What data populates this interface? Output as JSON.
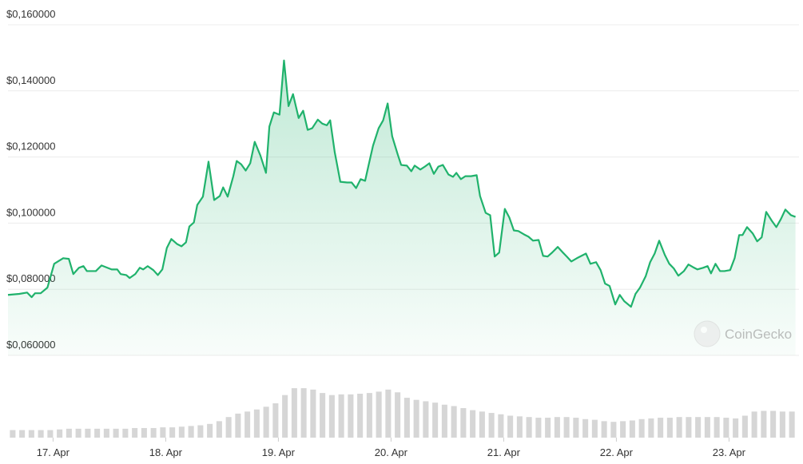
{
  "chart_data": {
    "type": "line",
    "color": "#20b26c",
    "grid": true,
    "watermark": "CoinGecko",
    "xlim": [
      -0.4,
      6.6
    ],
    "ylim": [
      0.06,
      0.16
    ],
    "yticks": [
      {
        "value": 0.06,
        "label": "$0,060000"
      },
      {
        "value": 0.08,
        "label": "$0,080000"
      },
      {
        "value": 0.1,
        "label": "$0,100000"
      },
      {
        "value": 0.12,
        "label": "$0,120000"
      },
      {
        "value": 0.14,
        "label": "$0,140000"
      },
      {
        "value": 0.16,
        "label": "$0,160000"
      }
    ],
    "xticks": [
      {
        "value": 0,
        "label": "17. Apr"
      },
      {
        "value": 1,
        "label": "18. Apr"
      },
      {
        "value": 2,
        "label": "19. Apr"
      },
      {
        "value": 3,
        "label": "20. Apr"
      },
      {
        "value": 4,
        "label": "21. Apr"
      },
      {
        "value": 5,
        "label": "22. Apr"
      },
      {
        "value": 6,
        "label": "23. Apr"
      }
    ],
    "x": [
      -0.4,
      -0.3,
      -0.23,
      -0.19,
      -0.16,
      -0.11,
      -0.05,
      0.01,
      0.09,
      0.14,
      0.18,
      0.23,
      0.27,
      0.3,
      0.38,
      0.43,
      0.52,
      0.57,
      0.6,
      0.65,
      0.68,
      0.73,
      0.77,
      0.8,
      0.84,
      0.89,
      0.93,
      0.97,
      1.01,
      1.05,
      1.1,
      1.14,
      1.18,
      1.21,
      1.25,
      1.28,
      1.33,
      1.38,
      1.43,
      1.48,
      1.51,
      1.55,
      1.6,
      1.63,
      1.67,
      1.71,
      1.75,
      1.79,
      1.84,
      1.89,
      1.92,
      1.96,
      2.01,
      2.05,
      2.09,
      2.13,
      2.18,
      2.22,
      2.26,
      2.3,
      2.35,
      2.39,
      2.43,
      2.46,
      2.5,
      2.55,
      2.61,
      2.65,
      2.69,
      2.73,
      2.77,
      2.8,
      2.84,
      2.89,
      2.93,
      2.97,
      3.01,
      3.06,
      3.09,
      3.14,
      3.18,
      3.21,
      3.26,
      3.3,
      3.34,
      3.38,
      3.42,
      3.46,
      3.51,
      3.55,
      3.58,
      3.62,
      3.66,
      3.71,
      3.76,
      3.79,
      3.84,
      3.88,
      3.92,
      3.96,
      4.01,
      4.05,
      4.09,
      4.13,
      4.18,
      4.22,
      4.26,
      4.31,
      4.35,
      4.39,
      4.43,
      4.48,
      4.52,
      4.56,
      4.6,
      4.65,
      4.69,
      4.73,
      4.77,
      4.82,
      4.86,
      4.9,
      4.94,
      4.99,
      5.03,
      5.07,
      5.13,
      5.17,
      5.21,
      5.26,
      5.3,
      5.34,
      5.38,
      5.43,
      5.47,
      5.51,
      5.55,
      5.6,
      5.64,
      5.68,
      5.72,
      5.77,
      5.81,
      5.84,
      5.88,
      5.92,
      5.96,
      6.01,
      6.05,
      6.09,
      6.12,
      6.16,
      6.21,
      6.25,
      6.29,
      6.33,
      6.38,
      6.42,
      6.46,
      6.5,
      6.55,
      6.59
    ],
    "values": [
      0.0783,
      0.0786,
      0.079,
      0.0776,
      0.0788,
      0.0788,
      0.0805,
      0.0877,
      0.0894,
      0.0892,
      0.0846,
      0.0865,
      0.087,
      0.0855,
      0.0855,
      0.0872,
      0.086,
      0.086,
      0.0846,
      0.0843,
      0.0834,
      0.0846,
      0.0865,
      0.086,
      0.087,
      0.0858,
      0.0843,
      0.086,
      0.0925,
      0.0952,
      0.0937,
      0.093,
      0.0942,
      0.099,
      0.1002,
      0.1055,
      0.108,
      0.1186,
      0.107,
      0.1082,
      0.1108,
      0.108,
      0.1142,
      0.1188,
      0.1178,
      0.1159,
      0.1181,
      0.1246,
      0.1205,
      0.1152,
      0.1292,
      0.1335,
      0.1328,
      0.1492,
      0.1354,
      0.139,
      0.1318,
      0.134,
      0.1282,
      0.1287,
      0.1313,
      0.1301,
      0.1296,
      0.1311,
      0.1215,
      0.1125,
      0.1123,
      0.1123,
      0.1106,
      0.1133,
      0.1128,
      0.1174,
      0.1234,
      0.1287,
      0.1311,
      0.1362,
      0.1263,
      0.1207,
      0.1176,
      0.1174,
      0.1157,
      0.1174,
      0.1162,
      0.1171,
      0.1181,
      0.1149,
      0.1171,
      0.1176,
      0.1147,
      0.114,
      0.1152,
      0.1133,
      0.1142,
      0.1142,
      0.1145,
      0.1082,
      0.1031,
      0.1024,
      0.0899,
      0.0911,
      0.1043,
      0.1017,
      0.0978,
      0.0976,
      0.0966,
      0.0959,
      0.0947,
      0.0949,
      0.0901,
      0.0899,
      0.0911,
      0.0928,
      0.0913,
      0.0899,
      0.0884,
      0.0894,
      0.0901,
      0.0908,
      0.0877,
      0.0882,
      0.0858,
      0.0817,
      0.081,
      0.0754,
      0.0783,
      0.0764,
      0.0747,
      0.0786,
      0.0805,
      0.0839,
      0.0882,
      0.0908,
      0.0947,
      0.0904,
      0.0877,
      0.0863,
      0.0841,
      0.0855,
      0.0875,
      0.0867,
      0.086,
      0.0865,
      0.087,
      0.0848,
      0.0877,
      0.0855,
      0.0855,
      0.0858,
      0.0894,
      0.0964,
      0.0964,
      0.0988,
      0.0969,
      0.0945,
      0.0957,
      0.1034,
      0.1007,
      0.0988,
      0.1012,
      0.1041,
      0.1024,
      0.1019
    ],
    "volume": {
      "color": "#d6d6d6",
      "ylim": [
        0,
        100
      ],
      "values": [
        11,
        11,
        11,
        11,
        11,
        12,
        13,
        13,
        13,
        13,
        13,
        13,
        13,
        14,
        14,
        14,
        15,
        15,
        16,
        17,
        18,
        20,
        24,
        30,
        35,
        38,
        41,
        45,
        50,
        62,
        72,
        72,
        70,
        65,
        62,
        63,
        63,
        64,
        65,
        67,
        70,
        66,
        58,
        55,
        53,
        51,
        48,
        46,
        43,
        40,
        38,
        36,
        34,
        32,
        31,
        30,
        29,
        29,
        30,
        30,
        29,
        27,
        26,
        24,
        23,
        24,
        25,
        27,
        28,
        29,
        29,
        30,
        30,
        30,
        30,
        30,
        29,
        28,
        32,
        38,
        39,
        39,
        38,
        38
      ]
    }
  }
}
